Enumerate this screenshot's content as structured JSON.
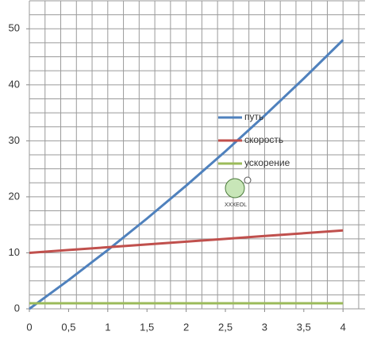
{
  "chart_data": {
    "type": "line",
    "x": [
      0,
      0.5,
      1,
      1.5,
      2,
      2.5,
      3,
      3.5,
      4
    ],
    "series": [
      {
        "name": "путь",
        "color": "#4f81bd",
        "values": [
          0,
          5.125,
          10.5,
          16.125,
          22,
          28.125,
          34.5,
          41.125,
          48
        ]
      },
      {
        "name": "скорость",
        "color": "#c0504d",
        "values": [
          10,
          10.5,
          11,
          11.5,
          12,
          12.5,
          13,
          13.5,
          14
        ]
      },
      {
        "name": "ускорение",
        "color": "#9bbb59",
        "values": [
          1,
          1,
          1,
          1,
          1,
          1,
          1,
          1,
          1
        ]
      }
    ],
    "xlim": [
      0,
      4.2
    ],
    "ylim": [
      0,
      55
    ],
    "xticks": [
      0,
      {
        "value": 0.5,
        "label": "0,5"
      },
      1,
      {
        "value": 1.5,
        "label": "1,5"
      },
      2,
      {
        "value": 2.5,
        "label": "2,5"
      },
      3,
      {
        "value": 3.5,
        "label": "3,5"
      },
      4
    ],
    "yticks": [
      0,
      10,
      20,
      30,
      40,
      50
    ],
    "xgrid": [
      0,
      0.2,
      0.4,
      0.6,
      0.8,
      1,
      1.2,
      1.4,
      1.6,
      1.8,
      2,
      2.2,
      2.4,
      2.6,
      2.8,
      3,
      3.2,
      3.4,
      3.6,
      3.8,
      4,
      4.2
    ],
    "ygrid": [
      0,
      2.5,
      5,
      7.5,
      10,
      12.5,
      15,
      17.5,
      20,
      22.5,
      25,
      27.5,
      30,
      32.5,
      35,
      37.5,
      40,
      42.5,
      45,
      47.5,
      50,
      52.5,
      55
    ],
    "grid": true,
    "legend": "center-right",
    "watermark": "XXXEOL"
  }
}
